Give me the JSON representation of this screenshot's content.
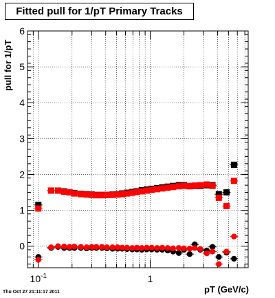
{
  "header": {
    "title": "Fitted pull for 1/pT  Primary Tracks"
  },
  "footer": {
    "timestamp": "Thu Oct 27 21:11:17 2011"
  },
  "chart_data": {
    "type": "scatter",
    "xlabel": "pT (GeV/c)",
    "ylabel": "pull for 1/pT",
    "x_scale": "log",
    "xlim": [
      0.08,
      7.5
    ],
    "ylim": [
      -0.6,
      6
    ],
    "grid": true,
    "y_ticks": [
      "0",
      "1",
      "2",
      "3",
      "4",
      "5",
      "6"
    ],
    "x_tick_labels": [
      {
        "value": 0.1,
        "base": "10",
        "exp": "-1"
      },
      {
        "value": 1,
        "text": "1"
      }
    ],
    "colors": {
      "series_black": "#000000",
      "series_red": "#ff0000"
    },
    "series": [
      {
        "color": "black",
        "marker": "square",
        "points": [
          [
            0.1,
            1.15
          ],
          [
            0.13,
            1.55
          ],
          [
            0.15,
            1.55
          ],
          [
            0.17,
            1.53
          ],
          [
            0.19,
            1.5
          ],
          [
            0.21,
            1.48
          ],
          [
            0.24,
            1.46
          ],
          [
            0.27,
            1.45
          ],
          [
            0.3,
            1.44
          ],
          [
            0.33,
            1.43
          ],
          [
            0.37,
            1.43
          ],
          [
            0.41,
            1.43
          ],
          [
            0.46,
            1.44
          ],
          [
            0.51,
            1.45
          ],
          [
            0.56,
            1.47
          ],
          [
            0.62,
            1.49
          ],
          [
            0.69,
            1.51
          ],
          [
            0.76,
            1.53
          ],
          [
            0.84,
            1.56
          ],
          [
            0.93,
            1.58
          ],
          [
            1.03,
            1.6
          ],
          [
            1.15,
            1.62
          ],
          [
            1.28,
            1.64
          ],
          [
            1.43,
            1.66
          ],
          [
            1.6,
            1.68
          ],
          [
            1.8,
            1.7
          ],
          [
            2.0,
            1.7
          ],
          [
            2.25,
            1.67
          ],
          [
            2.5,
            1.68
          ],
          [
            2.8,
            1.68
          ],
          [
            3.2,
            1.7
          ],
          [
            3.6,
            1.7
          ],
          [
            4.1,
            1.45
          ],
          [
            4.8,
            1.5
          ],
          [
            5.6,
            2.27
          ]
        ]
      },
      {
        "color": "black",
        "marker": "circle",
        "points": [
          [
            0.1,
            -0.3
          ],
          [
            0.13,
            -0.05
          ],
          [
            0.15,
            -0.02
          ],
          [
            0.17,
            -0.05
          ],
          [
            0.19,
            -0.05
          ],
          [
            0.21,
            -0.05
          ],
          [
            0.24,
            -0.05
          ],
          [
            0.27,
            -0.06
          ],
          [
            0.3,
            -0.05
          ],
          [
            0.33,
            -0.05
          ],
          [
            0.37,
            -0.05
          ],
          [
            0.41,
            -0.06
          ],
          [
            0.46,
            -0.07
          ],
          [
            0.51,
            -0.07
          ],
          [
            0.56,
            -0.07
          ],
          [
            0.62,
            -0.08
          ],
          [
            0.69,
            -0.09
          ],
          [
            0.76,
            -0.09
          ],
          [
            0.84,
            -0.1
          ],
          [
            0.93,
            -0.09
          ],
          [
            1.03,
            -0.09
          ],
          [
            1.15,
            -0.1
          ],
          [
            1.28,
            -0.1
          ],
          [
            1.43,
            -0.12
          ],
          [
            1.6,
            -0.15
          ],
          [
            1.8,
            -0.19
          ],
          [
            2.0,
            -0.1
          ],
          [
            2.25,
            -0.22
          ],
          [
            2.5,
            0.05
          ],
          [
            2.8,
            -0.1
          ],
          [
            3.2,
            -0.12
          ],
          [
            3.6,
            -0.02
          ],
          [
            4.1,
            -0.3
          ],
          [
            4.8,
            -0.18
          ],
          [
            5.6,
            -0.35
          ]
        ]
      },
      {
        "color": "red",
        "marker": "square",
        "points": [
          [
            0.1,
            1.05
          ],
          [
            0.13,
            1.55
          ],
          [
            0.15,
            1.55
          ],
          [
            0.17,
            1.52
          ],
          [
            0.19,
            1.5
          ],
          [
            0.21,
            1.47
          ],
          [
            0.24,
            1.45
          ],
          [
            0.27,
            1.44
          ],
          [
            0.3,
            1.43
          ],
          [
            0.33,
            1.42
          ],
          [
            0.37,
            1.42
          ],
          [
            0.41,
            1.43
          ],
          [
            0.46,
            1.43
          ],
          [
            0.51,
            1.44
          ],
          [
            0.56,
            1.45
          ],
          [
            0.62,
            1.47
          ],
          [
            0.69,
            1.49
          ],
          [
            0.76,
            1.51
          ],
          [
            0.84,
            1.53
          ],
          [
            0.93,
            1.55
          ],
          [
            1.03,
            1.57
          ],
          [
            1.15,
            1.59
          ],
          [
            1.28,
            1.61
          ],
          [
            1.43,
            1.63
          ],
          [
            1.6,
            1.65
          ],
          [
            1.8,
            1.67
          ],
          [
            2.0,
            1.68
          ],
          [
            2.25,
            1.68
          ],
          [
            2.5,
            1.69
          ],
          [
            2.8,
            1.7
          ],
          [
            3.2,
            1.72
          ],
          [
            3.6,
            1.68
          ],
          [
            4.1,
            1.35
          ],
          [
            4.8,
            1.12
          ],
          [
            5.6,
            1.82
          ]
        ]
      },
      {
        "color": "red",
        "marker": "circle",
        "points": [
          [
            0.1,
            -0.38
          ],
          [
            0.13,
            -0.03
          ],
          [
            0.15,
            0.0
          ],
          [
            0.17,
            -0.01
          ],
          [
            0.19,
            -0.02
          ],
          [
            0.21,
            -0.01
          ],
          [
            0.24,
            -0.02
          ],
          [
            0.27,
            -0.03
          ],
          [
            0.3,
            -0.02
          ],
          [
            0.33,
            -0.02
          ],
          [
            0.37,
            -0.02
          ],
          [
            0.41,
            -0.03
          ],
          [
            0.46,
            -0.03
          ],
          [
            0.51,
            -0.03
          ],
          [
            0.56,
            -0.04
          ],
          [
            0.62,
            -0.04
          ],
          [
            0.69,
            -0.05
          ],
          [
            0.76,
            -0.04
          ],
          [
            0.84,
            -0.05
          ],
          [
            0.93,
            -0.04
          ],
          [
            1.03,
            -0.04
          ],
          [
            1.15,
            -0.05
          ],
          [
            1.28,
            -0.04
          ],
          [
            1.43,
            -0.05
          ],
          [
            1.6,
            -0.06
          ],
          [
            1.8,
            -0.05
          ],
          [
            2.0,
            -0.06
          ],
          [
            2.25,
            -0.07
          ],
          [
            2.5,
            -0.05
          ],
          [
            2.8,
            -0.08
          ],
          [
            3.2,
            -0.2
          ],
          [
            3.6,
            -0.15
          ],
          [
            4.1,
            -0.5
          ],
          [
            4.8,
            -0.15
          ],
          [
            5.6,
            0.27
          ]
        ]
      }
    ]
  }
}
